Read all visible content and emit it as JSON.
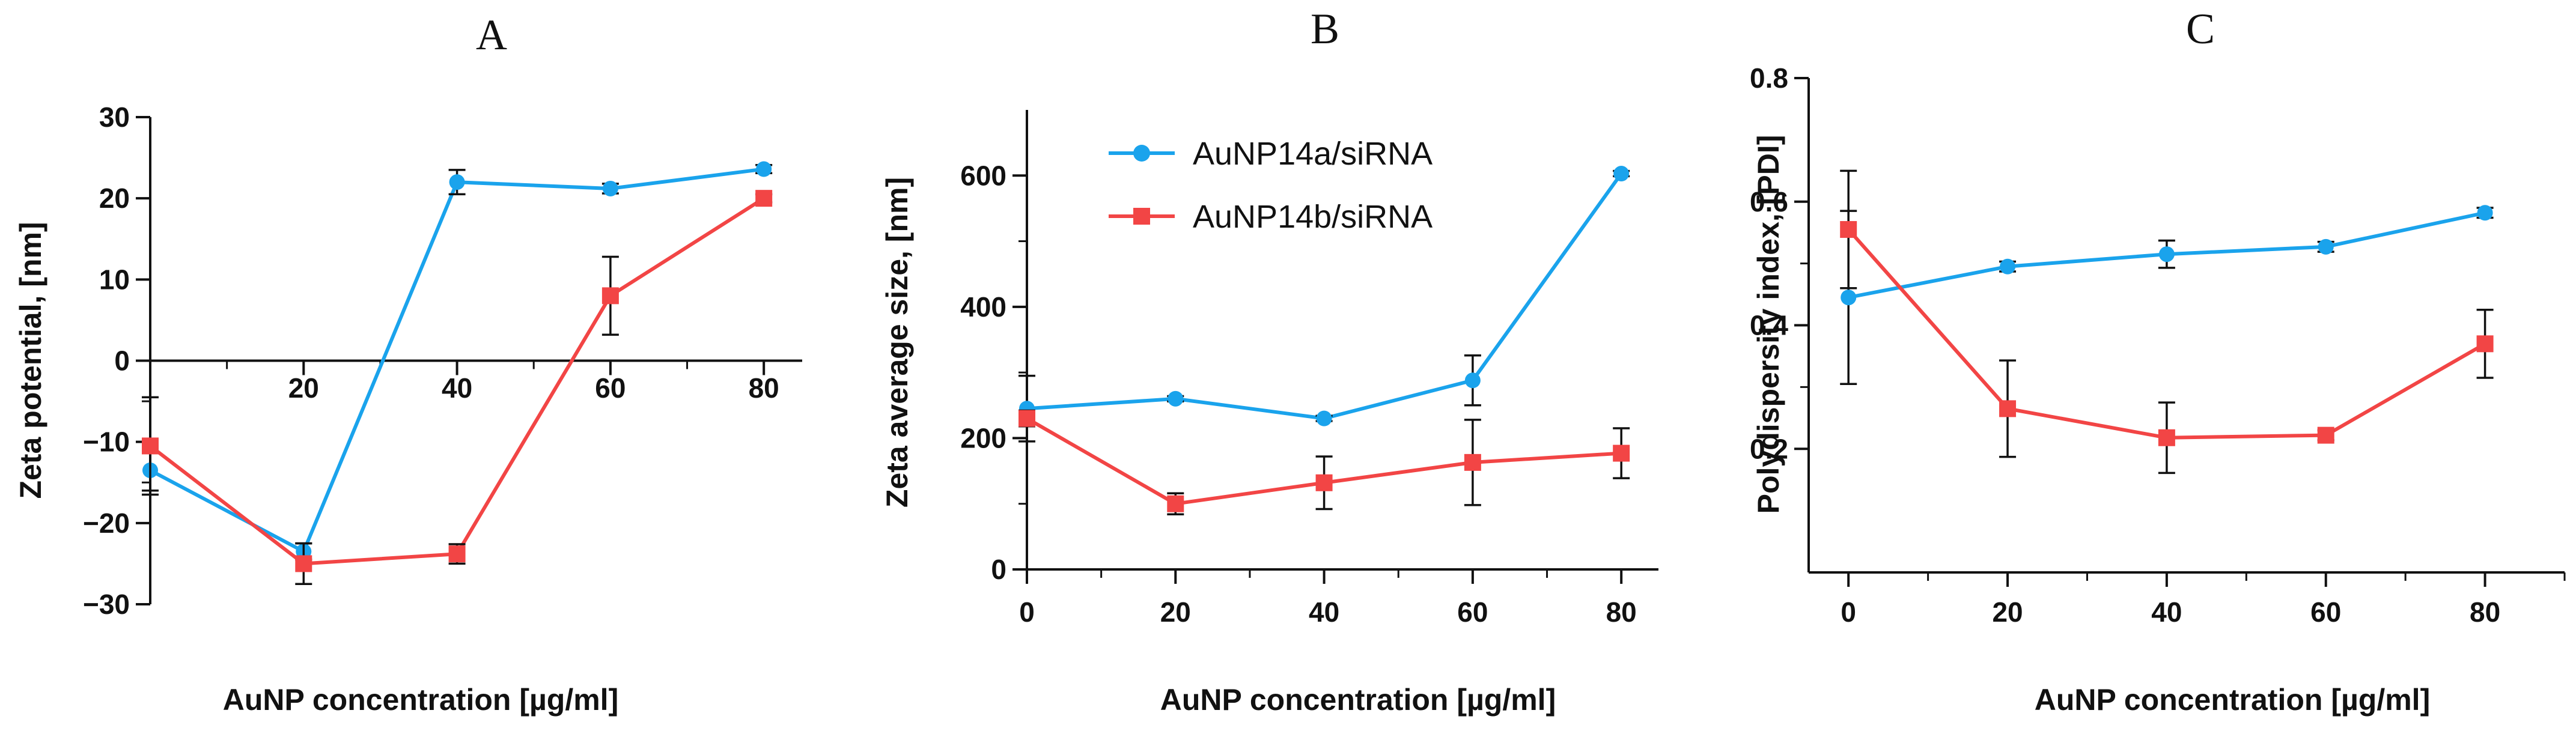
{
  "colors": {
    "series_a": "#1aa3ec",
    "series_b": "#f24545",
    "axis": "#111111"
  },
  "legend": {
    "entries": [
      {
        "name": "AuNP14a/siRNA",
        "marker": "circle",
        "color_key": "series_a"
      },
      {
        "name": "AuNP14b/siRNA",
        "marker": "square",
        "color_key": "series_b"
      }
    ]
  },
  "chart_data": [
    {
      "type": "line",
      "panel_label": "A",
      "title": "",
      "xlabel": "AuNP concentration [µg/ml]",
      "ylabel": "Zeta potential, [nm]",
      "xlim": [
        0,
        85
      ],
      "ylim": [
        -30,
        30
      ],
      "xticks": [
        20,
        40,
        60,
        80
      ],
      "yticks": [
        -30,
        -20,
        -10,
        0,
        10,
        20,
        30
      ],
      "ytick_labels": [
        "−30",
        "−20",
        "−10",
        "0",
        "10",
        "20",
        "30"
      ],
      "x_axis_at": 0,
      "grid": false,
      "series": [
        {
          "name": "AuNP14a/siRNA",
          "x": [
            0,
            20,
            40,
            60,
            80
          ],
          "y": [
            -13.5,
            -23.5,
            22,
            21.2,
            23.6
          ],
          "err": [
            2.5,
            1.0,
            1.5,
            0.6,
            0.5
          ]
        },
        {
          "name": "AuNP14b/siRNA",
          "x": [
            0,
            20,
            40,
            60,
            80
          ],
          "y": [
            -10.5,
            -25,
            -23.8,
            8,
            20
          ],
          "err": [
            6,
            2.5,
            1.2,
            4.8,
            0.5
          ]
        }
      ]
    },
    {
      "type": "line",
      "panel_label": "B",
      "title": "",
      "xlabel": "AuNP concentration [µg/ml]",
      "ylabel": "Zeta average size, [nm]",
      "xlim": [
        0,
        85
      ],
      "ylim": [
        0,
        700
      ],
      "xticks": [
        0,
        20,
        40,
        60,
        80
      ],
      "yticks": [
        0,
        200,
        400,
        600
      ],
      "ytick_labels": [
        "0",
        "200",
        "400",
        "600"
      ],
      "grid": false,
      "legend_position": "top-left",
      "series": [
        {
          "name": "AuNP14a/siRNA",
          "x": [
            0,
            20,
            40,
            60,
            80
          ],
          "y": [
            245,
            260,
            230,
            288,
            603
          ],
          "err": [
            50,
            4,
            4,
            38,
            4
          ]
        },
        {
          "name": "AuNP14b/siRNA",
          "x": [
            0,
            20,
            40,
            60,
            80
          ],
          "y": [
            230,
            100,
            132,
            163,
            177
          ],
          "err": [
            12,
            16,
            40,
            65,
            38
          ]
        }
      ]
    },
    {
      "type": "line",
      "panel_label": "C",
      "title": "",
      "xlabel": "AuNP concentration [µg/ml]",
      "ylabel": "Polydispersity index, [PDI]",
      "xlim": [
        -5,
        90
      ],
      "ylim": [
        0,
        0.8
      ],
      "xticks": [
        0,
        20,
        40,
        60,
        80
      ],
      "yticks": [
        0.2,
        0.4,
        0.6,
        0.8
      ],
      "ytick_labels": [
        "0.2",
        "0.4",
        "0.6",
        "0.8"
      ],
      "grid": false,
      "series": [
        {
          "name": "AuNP14a/siRNA",
          "x": [
            0,
            20,
            40,
            60,
            80
          ],
          "y": [
            0.445,
            0.495,
            0.515,
            0.527,
            0.582
          ],
          "err": [
            0.14,
            0.008,
            0.022,
            0.008,
            0.008
          ]
        },
        {
          "name": "AuNP14b/siRNA",
          "x": [
            0,
            20,
            40,
            60,
            80
          ],
          "y": [
            0.555,
            0.265,
            0.218,
            0.222,
            0.37
          ],
          "err": [
            0.095,
            0.078,
            0.057,
            0.008,
            0.055
          ]
        }
      ]
    }
  ]
}
